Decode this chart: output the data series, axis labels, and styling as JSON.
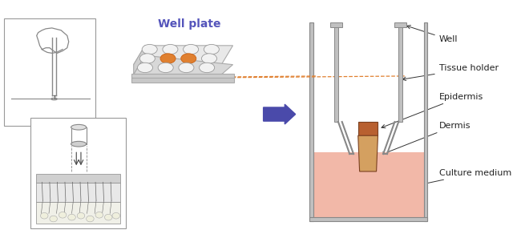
{
  "bg_color": "#ffffff",
  "title": "Well plate",
  "title_color": "#5555bb",
  "title_fontsize": 10,
  "arrow_color": "#4a4aaa",
  "dashed_line_color": "#e08030",
  "culture_medium_color": "#f2b8a8",
  "epidermis_top_color": "#b86030",
  "epidermis_bottom_color": "#d4a060",
  "label_fontsize": 8,
  "label_color": "#222222",
  "labels": [
    "Well",
    "Tissue holder",
    "Epidermis",
    "Dermis",
    "Culture medium"
  ],
  "well_gray": "#d8d8d8",
  "wall_color": "#c0c0c0",
  "wall_edge": "#888888"
}
